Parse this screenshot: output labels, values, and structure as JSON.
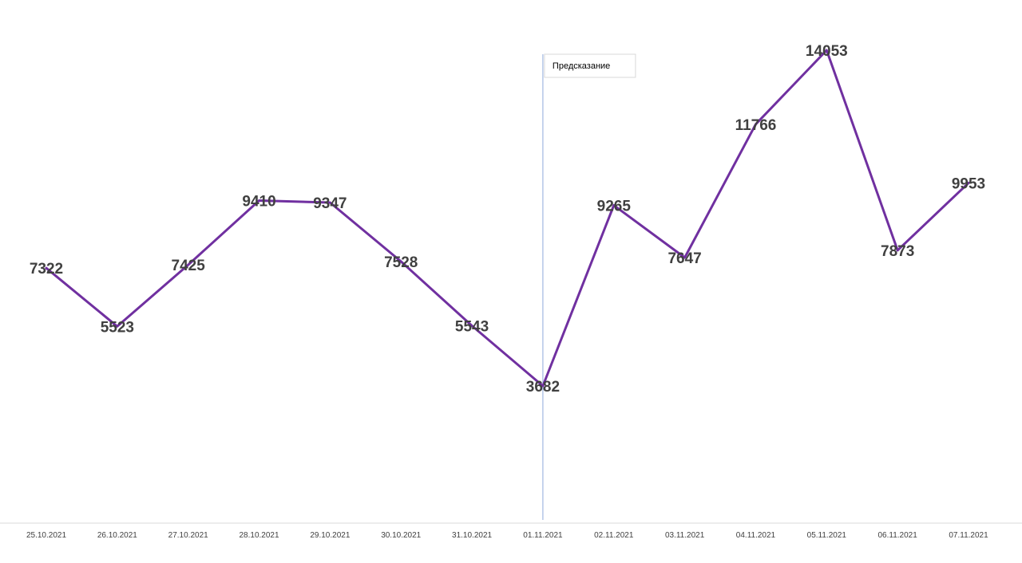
{
  "chart_data": {
    "type": "line",
    "categories": [
      "25.10.2021",
      "26.10.2021",
      "27.10.2021",
      "28.10.2021",
      "29.10.2021",
      "30.10.2021",
      "31.10.2021",
      "01.11.2021",
      "02.11.2021",
      "03.11.2021",
      "04.11.2021",
      "05.11.2021",
      "06.11.2021",
      "07.11.2021"
    ],
    "series": [
      {
        "values": [
          7322,
          5523,
          7425,
          9410,
          9347,
          7528,
          5543,
          3682,
          9265,
          7647,
          11766,
          14053,
          7873,
          9953
        ],
        "color": "#7030A0"
      }
    ],
    "data_labels": [
      "7322",
      "5523",
      "7425",
      "9410",
      "9347",
      "7528",
      "5543",
      "3682",
      "9265",
      "7647",
      "11766",
      "14053",
      "7873",
      "9953"
    ],
    "title": "",
    "xlabel": "",
    "ylabel": "",
    "grid": false,
    "legend": "none",
    "annotation": {
      "text": "Предсказание",
      "at_category": "01.11.2021",
      "line_color": "#8EA9DB"
    }
  }
}
